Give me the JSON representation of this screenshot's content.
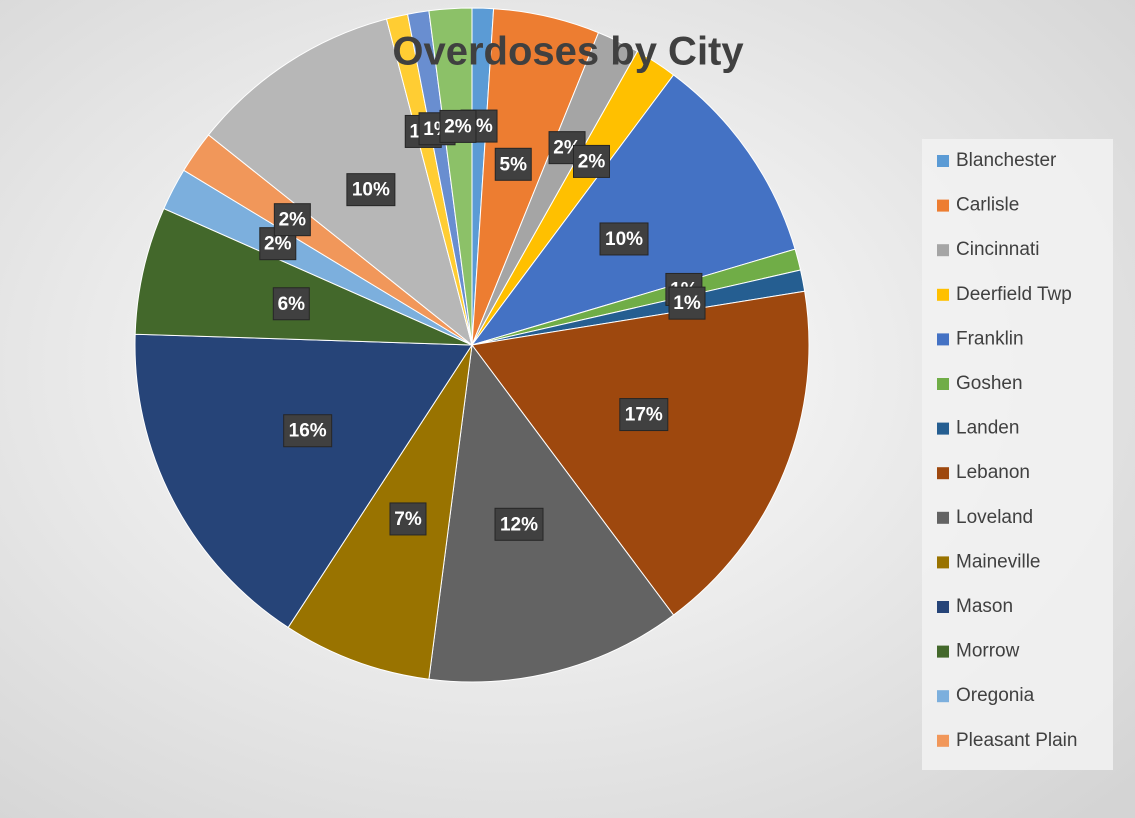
{
  "chart_data": {
    "type": "pie",
    "title": "Overdoses by City",
    "categories": [
      "Blanchester",
      "Carlisle",
      "Cincinnati",
      "Deerfield Twp",
      "Franklin",
      "Goshen",
      "Landen",
      "Lebanon",
      "Loveland",
      "Maineville",
      "Mason",
      "Morrow",
      "Oregonia",
      "Pleasant Plain",
      null,
      null,
      null,
      null
    ],
    "values": [
      1,
      5,
      2,
      2,
      10,
      1,
      1,
      17,
      12,
      7,
      16,
      6,
      2,
      2,
      10,
      1,
      1,
      2
    ],
    "value_labels": [
      "1%",
      "5%",
      "2%",
      "2%",
      "10%",
      "1%",
      "1%",
      "17%",
      "12%",
      "7%",
      "16%",
      "6%",
      "2%",
      "2%",
      "10%",
      "1%",
      "1%",
      "2%"
    ],
    "colors": [
      "#5b9bd5",
      "#ed7d31",
      "#a5a5a5",
      "#ffc000",
      "#4472c4",
      "#70ad47",
      "#255e91",
      "#9e480e",
      "#636363",
      "#997300",
      "#264478",
      "#43682b",
      "#7cafdd",
      "#f1975a",
      "#b7b7b7",
      "#ffcd33",
      "#698ed0",
      "#8cc168"
    ],
    "legend": "right"
  }
}
